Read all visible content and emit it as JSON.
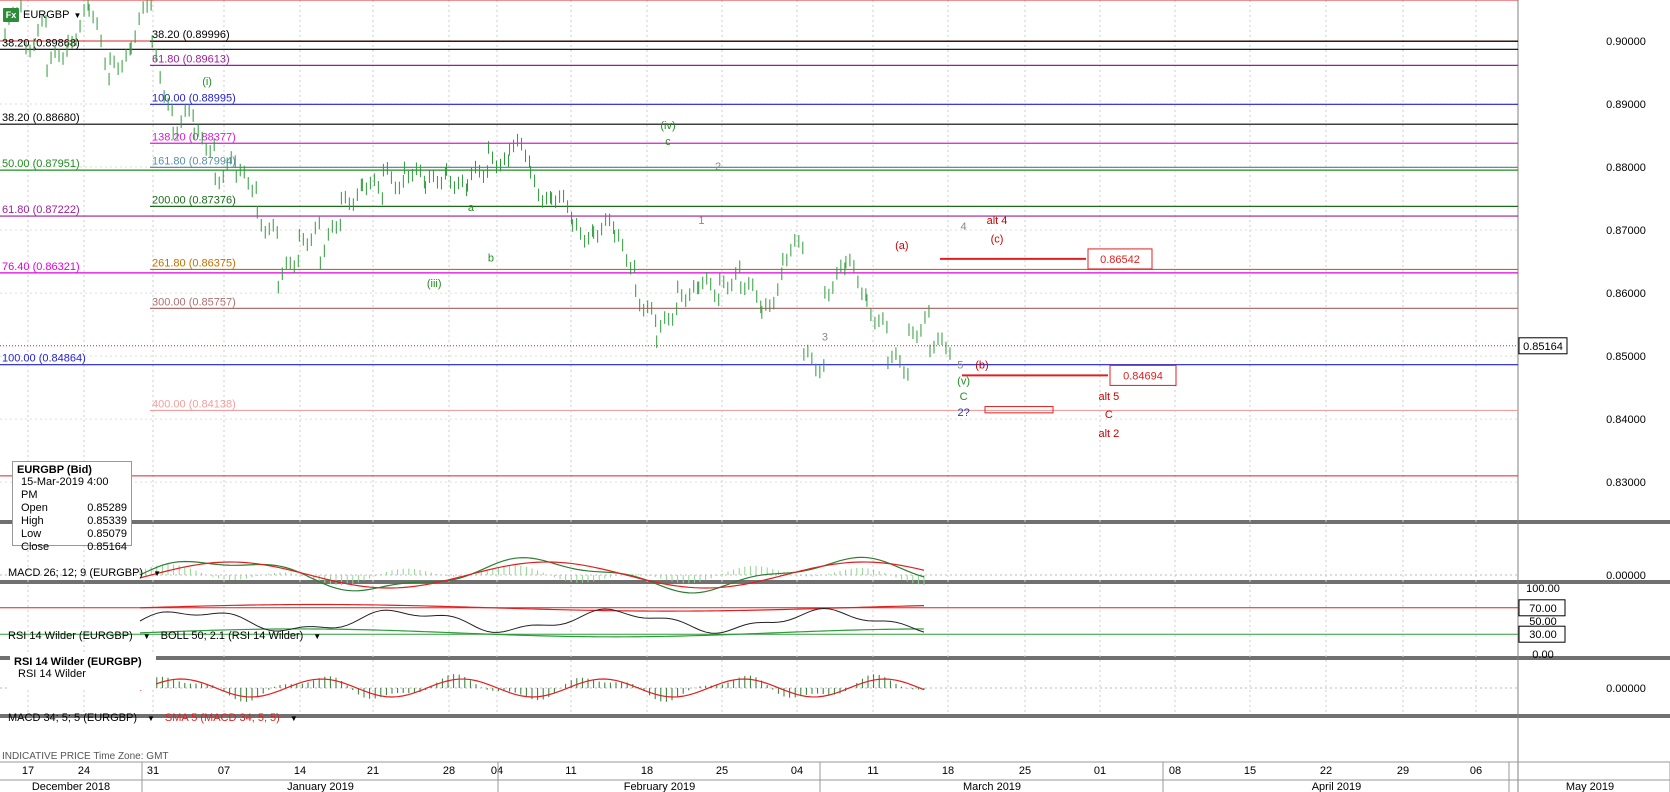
{
  "symbol": {
    "label": "EURGBP",
    "icon": "fx-icon"
  },
  "ohlc": {
    "title": "EURGBP (Bid)",
    "date": "15-Mar-2019 4:00 PM",
    "rows": [
      {
        "k": "Open",
        "v": "0.85289"
      },
      {
        "k": "High",
        "v": "0.85339"
      },
      {
        "k": "Low",
        "v": "0.85079"
      },
      {
        "k": "Close",
        "v": "0.85164"
      }
    ]
  },
  "panels": {
    "macd": "MACD 26; 12; 9 (EURGBP)",
    "rsi": "RSI 14 Wilder (EURGBP)",
    "boll": "BOLL 50; 2.1 (RSI 14 Wilder)",
    "rsi_box_title": "RSI 14 Wilder (EURGBP)",
    "rsi_box_row": "RSI 14 Wilder",
    "macd2": "MACD 34; 5; 5 (EURGBP)",
    "sma": "SMA 5 (MACD 34; 5; 5)"
  },
  "footer": "INDICATIVE PRICE   Time Zone: GMT",
  "chart_data": {
    "type": "line",
    "instrument": "EURGBP",
    "price_axis": {
      "ticks": [
        0.9,
        0.89,
        0.88,
        0.87,
        0.86,
        0.85,
        0.84,
        0.83
      ],
      "tick_labels": [
        "0.90000",
        "0.89000",
        "0.88000",
        "0.87000",
        "0.86000",
        "0.85000",
        "0.84000",
        "0.83000"
      ],
      "ylim": [
        0.824,
        0.9065
      ]
    },
    "last_price": {
      "value": 0.85164,
      "label": "0.85164"
    },
    "x_ticks": [
      "17",
      "24",
      "31",
      "07",
      "14",
      "21",
      "28",
      "04",
      "11",
      "18",
      "25",
      "04",
      "11",
      "18",
      "25",
      "01",
      "08",
      "15",
      "22",
      "29",
      "06"
    ],
    "months": [
      "December 2018",
      "January 2019",
      "February 2019",
      "March 2019",
      "April 2019",
      "May 2019"
    ],
    "price_path": [
      [
        0.901,
        0.908
      ],
      [
        0.8985,
        0.903
      ],
      [
        0.896,
        0.899
      ],
      [
        0.899,
        0.905
      ],
      [
        0.906,
        0.895
      ],
      [
        0.896,
        0.8975
      ],
      [
        0.9,
        0.907
      ],
      [
        0.899,
        0.888
      ],
      [
        0.886,
        0.889
      ],
      [
        0.885,
        0.883
      ],
      [
        0.878,
        0.881
      ],
      [
        0.879,
        0.877
      ],
      [
        0.872,
        0.869
      ],
      [
        0.862,
        0.866
      ],
      [
        0.868,
        0.87
      ],
      [
        0.866,
        0.872
      ],
      [
        0.874,
        0.876
      ],
      [
        0.878,
        0.876
      ],
      [
        0.879,
        0.877
      ],
      [
        0.88,
        0.878
      ],
      [
        0.877,
        0.879
      ],
      [
        0.879,
        0.876
      ],
      [
        0.878,
        0.88
      ],
      [
        0.882,
        0.88
      ],
      [
        0.884,
        0.882
      ],
      [
        0.878,
        0.874
      ],
      [
        0.876,
        0.873
      ],
      [
        0.87,
        0.869
      ],
      [
        0.87,
        0.871
      ],
      [
        0.869,
        0.864
      ],
      [
        0.86,
        0.8555
      ],
      [
        0.853,
        0.858
      ],
      [
        0.86,
        0.86
      ],
      [
        0.862,
        0.86
      ],
      [
        0.861,
        0.863
      ],
      [
        0.862,
        0.859
      ],
      [
        0.856,
        0.862
      ],
      [
        0.866,
        0.868
      ],
      [
        0.85,
        0.848
      ],
      [
        0.86,
        0.864
      ],
      [
        0.8654,
        0.86
      ],
      [
        0.858,
        0.854
      ],
      [
        0.85,
        0.848
      ],
      [
        0.853,
        0.856
      ],
      [
        0.852,
        0.8516
      ]
    ],
    "fib_levels": [
      {
        "label": "38.20 (0.89868)",
        "price": 0.89868,
        "color": "#000000",
        "side": "left"
      },
      {
        "label": "38.20 (0.89996)",
        "price": 0.89996,
        "color": "#000000",
        "side": "mid"
      },
      {
        "label": "61.80 (0.89613)",
        "price": 0.89613,
        "color": "#9b1f9b",
        "side": "mid"
      },
      {
        "label": "100.00 (0.88995)",
        "price": 0.88995,
        "color": "#1f1fcf",
        "side": "mid"
      },
      {
        "label": "38.20 (0.88680)",
        "price": 0.8868,
        "color": "#000000",
        "side": "left"
      },
      {
        "label": "138.20 (0.88377)",
        "price": 0.88377,
        "color": "#d81bd8",
        "side": "mid"
      },
      {
        "label": "161.80 (0.87994)",
        "price": 0.87994,
        "color": "#5a8fa8",
        "side": "mid"
      },
      {
        "label": "50.00 (0.87951)",
        "price": 0.87951,
        "color": "#1f8f1f",
        "side": "left"
      },
      {
        "label": "200.00 (0.87376)",
        "price": 0.87376,
        "color": "#1a6d1a",
        "side": "mid"
      },
      {
        "label": "61.80 (0.87222)",
        "price": 0.87222,
        "color": "#9b1f9b",
        "side": "left"
      },
      {
        "label": "261.80 (0.86375)",
        "price": 0.86375,
        "color": "#c07000",
        "side": "mid"
      },
      {
        "label": "76.40 (0.86321)",
        "price": 0.86321,
        "color": "#e000e0",
        "side": "left"
      },
      {
        "label": "300.00 (0.85757)",
        "price": 0.85757,
        "color": "#b07070",
        "side": "mid"
      },
      {
        "label": "100.00 (0.84864)",
        "price": 0.84864,
        "color": "#1f1fcf",
        "side": "left"
      },
      {
        "label": "400.00 (0.84138)",
        "price": 0.84138,
        "color": "#f0a0a0",
        "side": "mid"
      }
    ],
    "extra_lines": [
      0.9065,
      0.9,
      0.831
    ],
    "wave_labels": [
      {
        "t": "(i)",
        "color": "#1f8f1f",
        "x": 0.124,
        "y": 0.893
      },
      {
        "t": "(iv)",
        "color": "#1f8f1f",
        "x": 0.4,
        "y": 0.886
      },
      {
        "t": "c",
        "color": "#1f8f1f",
        "x": 0.4,
        "y": 0.8835
      },
      {
        "t": "2",
        "color": "#888888",
        "x": 0.43,
        "y": 0.8795
      },
      {
        "t": "1",
        "color": "#888888",
        "x": 0.42,
        "y": 0.871
      },
      {
        "t": "a",
        "color": "#1f8f1f",
        "x": 0.282,
        "y": 0.873
      },
      {
        "t": "b",
        "color": "#1f8f1f",
        "x": 0.294,
        "y": 0.865
      },
      {
        "t": "(iii)",
        "color": "#1f8f1f",
        "x": 0.26,
        "y": 0.861
      },
      {
        "t": "3",
        "color": "#888888",
        "x": 0.494,
        "y": 0.8525
      },
      {
        "t": "4",
        "color": "#888888",
        "x": 0.577,
        "y": 0.87
      },
      {
        "t": "(a)",
        "color": "#cc0000",
        "x": 0.54,
        "y": 0.867
      },
      {
        "t": "alt 4",
        "color": "#cc0000",
        "x": 0.597,
        "y": 0.871
      },
      {
        "t": "(c)",
        "color": "#cc0000",
        "x": 0.597,
        "y": 0.868
      },
      {
        "t": "5",
        "color": "#888888",
        "x": 0.575,
        "y": 0.848
      },
      {
        "t": "(b)",
        "color": "#cc0000",
        "x": 0.588,
        "y": 0.848
      },
      {
        "t": "(v)",
        "color": "#1f8f1f",
        "x": 0.577,
        "y": 0.8455
      },
      {
        "t": "C",
        "color": "#1f8f1f",
        "x": 0.577,
        "y": 0.843
      },
      {
        "t": "2?",
        "color": "#1f3faf",
        "x": 0.577,
        "y": 0.8405
      },
      {
        "t": "alt 5",
        "color": "#cc0000",
        "x": 0.664,
        "y": 0.843
      },
      {
        "t": "C",
        "color": "#cc0000",
        "x": 0.664,
        "y": 0.8402
      },
      {
        "t": "alt 2",
        "color": "#cc0000",
        "x": 0.664,
        "y": 0.8372
      }
    ],
    "price_boxes": [
      {
        "label": "0.86542",
        "price": 0.86542
      },
      {
        "label": "0.84694",
        "price": 0.84694
      }
    ],
    "target_zone": {
      "from": 0.842,
      "to": 0.841
    },
    "macd_axis": {
      "tick_labels": [
        "0.00000"
      ]
    },
    "rsi_axis": {
      "tick_labels": [
        "100.00",
        "70.00",
        "50.00",
        "30.00",
        "0.00"
      ],
      "ticks": [
        100,
        70,
        50,
        30,
        0
      ]
    },
    "macd2_axis": {
      "tick_labels": [
        "0.00000"
      ]
    },
    "colors": {
      "up": "#2e9b3a",
      "signal": "#e02020",
      "grid": "#c8c8c8",
      "boll_upper": "#e02020",
      "boll_lower": "#2e9b3a"
    }
  }
}
